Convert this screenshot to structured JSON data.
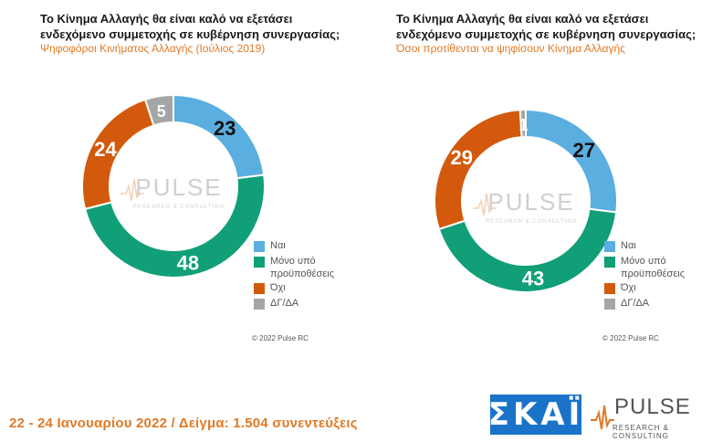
{
  "colors": {
    "yes": "#5aaee0",
    "conditional": "#119f77",
    "no": "#d3590c",
    "dk": "#a5a5a5",
    "subtitle": "#e07a26",
    "footer": "#e07a26",
    "skai": "#1a73c9"
  },
  "legend_labels": [
    "Ναι",
    "Μόνο υπό προϋποθέσεις",
    "Όχι",
    "ΔΓ/ΔΑ"
  ],
  "chart_data": [
    {
      "type": "pie",
      "title": "Το Κίνημα Αλλαγής θα είναι καλό να εξετάσει ενδεχόμενο συμμετοχής σε κυβέρνηση συνεργασίας;",
      "subtitle": "Ψηφοφόροι Κινήματος Αλλαγής (Ιούλιος 2019)",
      "categories": [
        "Ναι",
        "Μόνο υπό προϋποθέσεις",
        "Όχι",
        "ΔΓ/ΔΑ"
      ],
      "values": [
        23,
        48,
        24,
        5
      ],
      "value_labels": [
        "23",
        "48",
        "24",
        "5"
      ],
      "legend_placement": "bottom-right"
    },
    {
      "type": "pie",
      "title": "Το Κίνημα Αλλαγής θα είναι καλό να εξετάσει ενδεχόμενο συμμετοχής σε κυβέρνηση συνεργασίας;",
      "subtitle": "Όσοι προτίθενται να ψηφίσουν Κίνημα Αλλαγής",
      "categories": [
        "Ναι",
        "Μόνο υπό προϋποθέσεις",
        "Όχι",
        "ΔΓ/ΔΑ"
      ],
      "values": [
        27,
        43,
        29,
        1
      ],
      "value_labels": [
        "27",
        "43",
        "29",
        "1"
      ],
      "legend_placement": "bottom-right"
    }
  ],
  "copyright": "© 2022 Pulse RC",
  "watermark": {
    "word": "PULSE",
    "sub": "RESEARCH & CONSULTING"
  },
  "footer": {
    "text": "22 - 24 Ιανουαρίου 2022  /  Δείγμα:  1.504 συνεντεύξεις"
  },
  "logos": {
    "skai": "ΣΚΑΪ",
    "pulse_word": "PULSE",
    "pulse_sub": "RESEARCH & CONSULTING"
  }
}
